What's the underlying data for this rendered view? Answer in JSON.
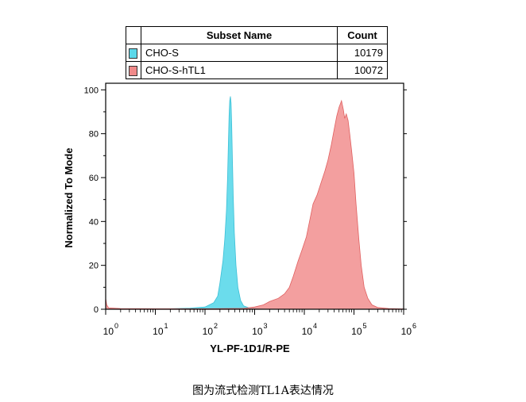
{
  "chart_data": {
    "type": "area",
    "title": "",
    "xlabel": "YL-PF-1D1/R-PE",
    "ylabel": "Normalized To Mode",
    "x_scale": "log",
    "xlim": [
      1,
      1000000
    ],
    "ylim": [
      0,
      100
    ],
    "x_ticks": [
      {
        "value": 1,
        "mantissa": "10",
        "exp": "0"
      },
      {
        "value": 10,
        "mantissa": "10",
        "exp": "1"
      },
      {
        "value": 100,
        "mantissa": "10",
        "exp": "2"
      },
      {
        "value": 1000,
        "mantissa": "10",
        "exp": "3"
      },
      {
        "value": 10000,
        "mantissa": "10",
        "exp": "4"
      },
      {
        "value": 100000,
        "mantissa": "10",
        "exp": "5"
      },
      {
        "value": 1000000,
        "mantissa": "10",
        "exp": "6"
      }
    ],
    "y_ticks": [
      "0",
      "20",
      "40",
      "60",
      "80",
      "100"
    ],
    "series": [
      {
        "name": "CHO-S",
        "count": "10179",
        "color": "#5bd8ea",
        "points": [
          [
            1,
            0
          ],
          [
            2,
            0.1
          ],
          [
            5,
            0.1
          ],
          [
            20,
            0.2
          ],
          [
            50,
            0.5
          ],
          [
            100,
            1
          ],
          [
            150,
            3
          ],
          [
            180,
            6
          ],
          [
            200,
            12
          ],
          [
            230,
            22
          ],
          [
            250,
            32
          ],
          [
            270,
            45
          ],
          [
            285,
            60
          ],
          [
            295,
            75
          ],
          [
            305,
            88
          ],
          [
            315,
            95
          ],
          [
            325,
            97
          ],
          [
            335,
            94
          ],
          [
            345,
            84
          ],
          [
            355,
            70
          ],
          [
            370,
            52
          ],
          [
            390,
            35
          ],
          [
            420,
            20
          ],
          [
            460,
            10
          ],
          [
            520,
            4
          ],
          [
            600,
            1.5
          ],
          [
            800,
            0.5
          ],
          [
            1200,
            0.2
          ],
          [
            2000,
            0
          ]
        ]
      },
      {
        "name": "CHO-S-hTL1",
        "count": "10072",
        "color": "#f08a8a",
        "points": [
          [
            1,
            5
          ],
          [
            1.05,
            2
          ],
          [
            1.15,
            0.6
          ],
          [
            2,
            0.3
          ],
          [
            10,
            0.2
          ],
          [
            100,
            0.2
          ],
          [
            600,
            0.4
          ],
          [
            1000,
            1
          ],
          [
            1500,
            2
          ],
          [
            2000,
            3.5
          ],
          [
            3000,
            5
          ],
          [
            4000,
            7
          ],
          [
            5000,
            10
          ],
          [
            6000,
            15
          ],
          [
            7500,
            22
          ],
          [
            9000,
            27
          ],
          [
            11000,
            33
          ],
          [
            13000,
            41
          ],
          [
            15000,
            48
          ],
          [
            18000,
            52
          ],
          [
            22000,
            58
          ],
          [
            26000,
            63
          ],
          [
            30000,
            68
          ],
          [
            35000,
            75
          ],
          [
            40000,
            82
          ],
          [
            45000,
            88
          ],
          [
            50000,
            92
          ],
          [
            56000,
            95
          ],
          [
            61000,
            91
          ],
          [
            65000,
            87
          ],
          [
            70000,
            89
          ],
          [
            76000,
            86
          ],
          [
            82000,
            80
          ],
          [
            90000,
            72
          ],
          [
            100000,
            62
          ],
          [
            110000,
            48
          ],
          [
            125000,
            32
          ],
          [
            140000,
            20
          ],
          [
            160000,
            10
          ],
          [
            190000,
            5
          ],
          [
            230000,
            2
          ],
          [
            300000,
            0.8
          ],
          [
            500000,
            0.3
          ],
          [
            1000000,
            0.1
          ]
        ]
      }
    ]
  },
  "legend": {
    "header_name": "Subset Name",
    "header_count": "Count"
  },
  "caption": "图为流式检测TL1A表达情况"
}
